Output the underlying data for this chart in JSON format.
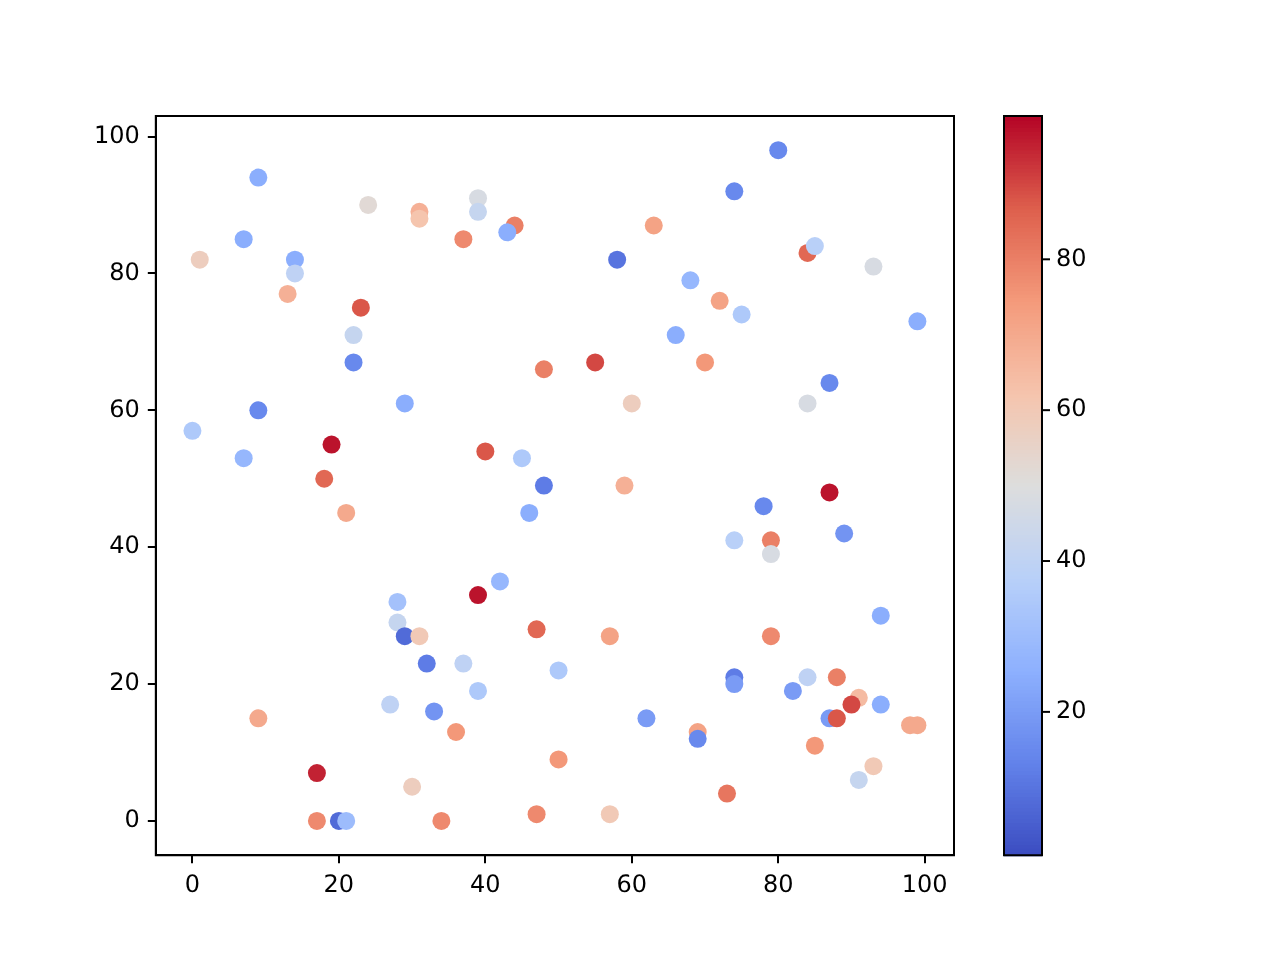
{
  "chart_data": {
    "type": "scatter",
    "x": [
      9,
      7,
      1,
      14,
      14,
      13,
      24,
      31,
      31,
      39,
      39,
      37,
      44,
      43,
      23,
      22,
      22,
      29,
      9,
      0,
      7,
      19,
      18,
      21,
      40,
      45,
      48,
      46,
      48,
      55,
      58,
      63,
      68,
      66,
      72,
      75,
      70,
      60,
      59,
      74,
      80,
      84,
      85,
      93,
      99,
      87,
      84,
      87,
      78,
      89,
      74,
      79,
      79,
      94,
      79,
      88,
      84,
      74,
      74,
      82,
      91,
      90,
      94,
      87,
      88,
      98,
      99,
      85,
      93,
      91,
      73,
      69,
      69,
      62,
      57,
      50,
      47,
      50,
      47,
      57,
      42,
      39,
      28,
      28,
      29,
      31,
      32,
      33,
      27,
      37,
      36,
      39,
      9,
      17,
      17,
      20,
      21,
      30,
      34
    ],
    "values": [
      94,
      85,
      82,
      82,
      80,
      77,
      90,
      89,
      88,
      91,
      89,
      85,
      87,
      86,
      75,
      71,
      67,
      61,
      60,
      57,
      53,
      55,
      50,
      45,
      54,
      53,
      49,
      45,
      66,
      67,
      82,
      87,
      79,
      71,
      76,
      74,
      67,
      61,
      49,
      92,
      98,
      83,
      84,
      81,
      73,
      64,
      61,
      48,
      46,
      42,
      41,
      41,
      39,
      30,
      27,
      21,
      21,
      21,
      20,
      19,
      18,
      17,
      17,
      15,
      15,
      14,
      14,
      11,
      8,
      6,
      4,
      13,
      12,
      15,
      27,
      22,
      28,
      9,
      1,
      1,
      35,
      33,
      32,
      29,
      27,
      27,
      23,
      16,
      17,
      23,
      13,
      19,
      15,
      7,
      0,
      0,
      0,
      5,
      0
    ],
    "cvalues": [
      25,
      25,
      58,
      25,
      40,
      68,
      52,
      68,
      62,
      48,
      42,
      78,
      80,
      25,
      88,
      42,
      15,
      25,
      15,
      35,
      28,
      97,
      85,
      70,
      88,
      35,
      12,
      25,
      80,
      90,
      10,
      72,
      28,
      25,
      72,
      35,
      75,
      58,
      68,
      15,
      15,
      85,
      38,
      48,
      25,
      15,
      48,
      97,
      15,
      18,
      38,
      80,
      48,
      25,
      78,
      80,
      40,
      12,
      20,
      20,
      65,
      90,
      25,
      20,
      88,
      70,
      70,
      75,
      60,
      42,
      82,
      72,
      15,
      20,
      72,
      35,
      85,
      75,
      78,
      60,
      28,
      97,
      32,
      42,
      8,
      60,
      12,
      18,
      40,
      40,
      75,
      35,
      70,
      95,
      78,
      8,
      30,
      58,
      78
    ],
    "clim": [
      1,
      99
    ],
    "cticks": [
      20,
      40,
      60,
      80
    ],
    "xlim": [
      -5,
      104
    ],
    "ylim": [
      -5,
      103
    ],
    "xticks": [
      0,
      20,
      40,
      60,
      80,
      100
    ],
    "yticks": [
      0,
      20,
      40,
      60,
      80,
      100
    ],
    "marker": "circle",
    "grid": false,
    "legend": false
  }
}
